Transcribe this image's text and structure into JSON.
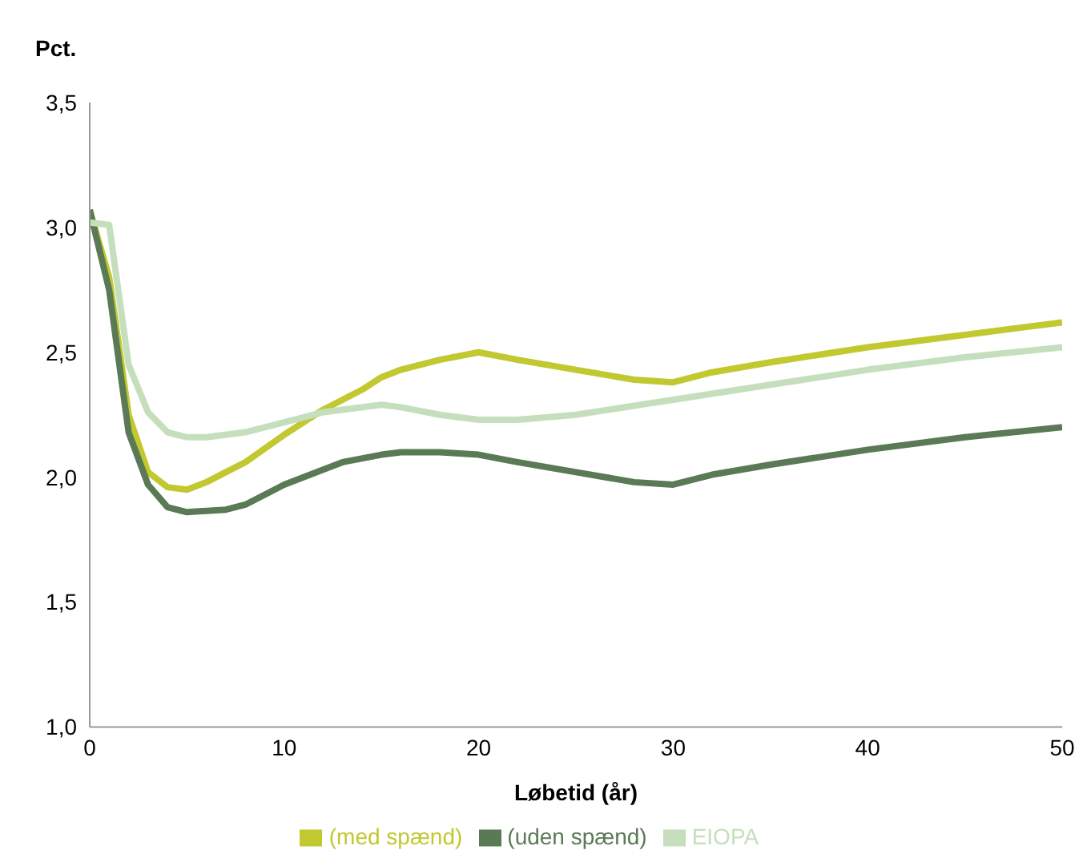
{
  "chart_data": {
    "type": "line",
    "ylabel": "Pct.",
    "xlabel": "Løbetid (år)",
    "xlim": [
      0,
      50
    ],
    "xticks": [
      0,
      10,
      20,
      30,
      40,
      50
    ],
    "ylim": [
      1.0,
      3.5
    ],
    "yticks": [
      {
        "value": 1.0,
        "label": "1,0"
      },
      {
        "value": 1.5,
        "label": "1,5"
      },
      {
        "value": 2.0,
        "label": "2,0"
      },
      {
        "value": 2.5,
        "label": "2,5"
      },
      {
        "value": 3.0,
        "label": "3,0"
      },
      {
        "value": 3.5,
        "label": "3,5"
      }
    ],
    "grid": false,
    "legend": "bottom",
    "marker": "none",
    "line_style": "solid",
    "series": [
      {
        "name": "(med spænd)",
        "color": "#c2c830",
        "x": [
          0,
          1,
          2,
          3,
          4,
          5,
          6,
          7,
          8,
          10,
          12,
          14,
          15,
          16,
          18,
          20,
          22,
          25,
          28,
          30,
          32,
          35,
          40,
          45,
          50
        ],
        "values": [
          3.07,
          2.8,
          2.25,
          2.02,
          1.96,
          1.95,
          1.98,
          2.02,
          2.06,
          2.17,
          2.27,
          2.35,
          2.4,
          2.43,
          2.47,
          2.5,
          2.47,
          2.43,
          2.39,
          2.38,
          2.42,
          2.46,
          2.52,
          2.57,
          2.62
        ]
      },
      {
        "name": "(uden spænd)",
        "color": "#5a7a55",
        "x": [
          0,
          1,
          2,
          3,
          4,
          5,
          7,
          8,
          10,
          12,
          13,
          15,
          16,
          18,
          20,
          22,
          25,
          28,
          30,
          32,
          35,
          40,
          45,
          50
        ],
        "values": [
          3.07,
          2.75,
          2.18,
          1.97,
          1.88,
          1.86,
          1.87,
          1.89,
          1.97,
          2.03,
          2.06,
          2.09,
          2.1,
          2.1,
          2.09,
          2.06,
          2.02,
          1.98,
          1.97,
          2.01,
          2.05,
          2.11,
          2.16,
          2.2
        ]
      },
      {
        "name": "EIOPA",
        "color": "#c5dfbd",
        "x": [
          0,
          1,
          2,
          3,
          4,
          5,
          6,
          8,
          10,
          12,
          15,
          16,
          18,
          20,
          22,
          25,
          30,
          35,
          40,
          45,
          50
        ],
        "values": [
          3.02,
          3.01,
          2.45,
          2.26,
          2.18,
          2.16,
          2.16,
          2.18,
          2.22,
          2.26,
          2.29,
          2.28,
          2.25,
          2.23,
          2.23,
          2.25,
          2.31,
          2.37,
          2.43,
          2.48,
          2.52
        ]
      }
    ]
  }
}
